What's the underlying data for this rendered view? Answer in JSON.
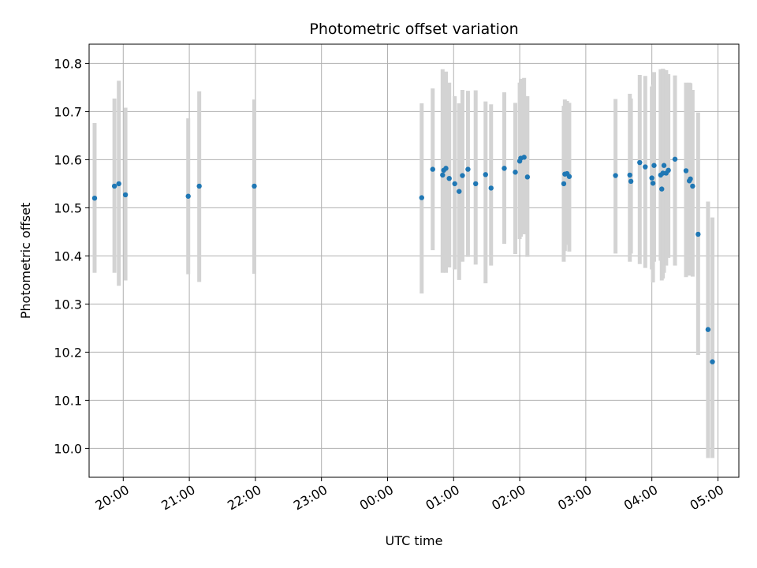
{
  "chart_data": {
    "type": "scatter",
    "title": "Photometric offset variation",
    "xlabel": "UTC time",
    "ylabel": "Photometric offset",
    "xlim": [
      "19:29",
      "05:19"
    ],
    "ylim": [
      9.94,
      10.84
    ],
    "x_ticks": [
      "20:00",
      "21:00",
      "22:00",
      "23:00",
      "00:00",
      "01:00",
      "02:00",
      "03:00",
      "04:00",
      "05:00"
    ],
    "y_ticks": [
      10.0,
      10.1,
      10.2,
      10.3,
      10.4,
      10.5,
      10.6,
      10.7,
      10.8
    ],
    "y_tick_labels": [
      "10.0",
      "10.1",
      "10.2",
      "10.3",
      "10.4",
      "10.5",
      "10.6",
      "10.7",
      "10.8"
    ],
    "grid": true,
    "point_color": "#1f77b4",
    "errorbar_color": "#d3d3d3",
    "series": [
      {
        "x": [
          "19:34",
          "19:52",
          "19:56",
          "20:02",
          "20:59",
          "21:09",
          "21:59",
          "00:31",
          "00:41",
          "00:50",
          "00:51",
          "00:53",
          "00:56",
          "01:01",
          "01:05",
          "01:08",
          "01:13",
          "01:20",
          "01:29",
          "01:34",
          "01:46",
          "01:56",
          "02:00",
          "02:01",
          "02:04",
          "02:07",
          "02:40",
          "02:41",
          "02:43",
          "02:45",
          "03:27",
          "03:40",
          "03:41",
          "03:49",
          "03:54",
          "04:00",
          "04:01",
          "04:02",
          "04:08",
          "04:09",
          "04:10",
          "04:11",
          "04:13",
          "04:15",
          "04:21",
          "04:31",
          "04:34",
          "04:35",
          "04:37",
          "04:42",
          "04:51",
          "04:55"
        ],
        "y": [
          10.52,
          10.545,
          10.55,
          10.527,
          10.524,
          10.545,
          10.545,
          10.521,
          10.58,
          10.568,
          10.578,
          10.582,
          10.561,
          10.55,
          10.534,
          10.567,
          10.58,
          10.55,
          10.569,
          10.541,
          10.582,
          10.574,
          10.597,
          10.603,
          10.605,
          10.564,
          10.55,
          10.57,
          10.571,
          10.565,
          10.567,
          10.568,
          10.555,
          10.594,
          10.585,
          10.562,
          10.551,
          10.588,
          10.568,
          10.539,
          10.572,
          10.588,
          10.572,
          10.578,
          10.601,
          10.577,
          10.556,
          10.56,
          10.545,
          10.445,
          10.247,
          10.18
        ],
        "y_low": [
          10.365,
          10.365,
          10.338,
          10.349,
          10.362,
          10.346,
          10.363,
          10.322,
          10.412,
          10.365,
          10.38,
          10.365,
          10.376,
          10.372,
          10.35,
          10.388,
          10.398,
          10.382,
          10.343,
          10.38,
          10.425,
          10.404,
          10.435,
          10.44,
          10.445,
          10.398,
          10.388,
          10.41,
          10.423,
          10.409,
          10.405,
          10.388,
          10.405,
          10.383,
          10.375,
          10.372,
          10.345,
          10.388,
          10.39,
          10.349,
          10.353,
          10.365,
          10.38,
          10.396,
          10.38,
          10.356,
          10.359,
          10.379,
          10.357,
          10.194,
          9.98,
          9.98
        ],
        "y_high": [
          10.676,
          10.727,
          10.764,
          10.708,
          10.686,
          10.742,
          10.725,
          10.717,
          10.748,
          10.788,
          10.768,
          10.783,
          10.76,
          10.732,
          10.717,
          10.745,
          10.743,
          10.744,
          10.721,
          10.715,
          10.74,
          10.718,
          10.76,
          10.768,
          10.77,
          10.732,
          10.712,
          10.725,
          10.722,
          10.718,
          10.726,
          10.737,
          10.727,
          10.776,
          10.774,
          10.752,
          10.756,
          10.782,
          10.788,
          10.787,
          10.789,
          10.787,
          10.786,
          10.778,
          10.775,
          10.76,
          10.76,
          10.759,
          10.745,
          10.698,
          10.513,
          10.48
        ]
      }
    ]
  }
}
